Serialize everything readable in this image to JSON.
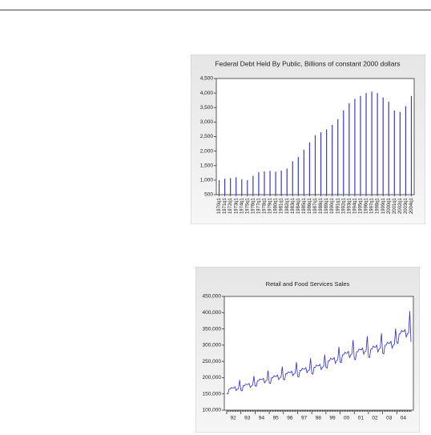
{
  "chart_data": [
    {
      "type": "bar",
      "title": "Federal Debt Held By Public, Billions of constant 2000 dollars",
      "categories": [
        "1970q1",
        "1971q1",
        "1972q1",
        "1973q1",
        "1974q1",
        "1975q1",
        "1976q1",
        "1977q1",
        "1978q1",
        "1979q1",
        "1980q1",
        "1981q1",
        "1982q1",
        "1983q1",
        "1984q1",
        "1985q1",
        "1986q1",
        "1987q1",
        "1988q1",
        "1989q1",
        "1990q1",
        "1991q1",
        "1992q1",
        "1993q1",
        "1994q1",
        "1995q1",
        "1996q1",
        "1997q1",
        "1998q1",
        "1999q1",
        "2000q1",
        "2001q1",
        "2002q1",
        "2003q1",
        "2004q1"
      ],
      "values": [
        1000,
        1050,
        1070,
        1100,
        1030,
        1000,
        1150,
        1270,
        1300,
        1320,
        1290,
        1330,
        1400,
        1650,
        1800,
        2050,
        2300,
        2550,
        2650,
        2750,
        2900,
        3100,
        3400,
        3650,
        3800,
        3900,
        4000,
        4050,
        4000,
        3850,
        3700,
        3400,
        3350,
        3550,
        3900
      ],
      "color": "#3a3ad0",
      "ylim": [
        500,
        4500
      ],
      "yticks": [
        {
          "value": 500,
          "label": "500"
        },
        {
          "value": 1000,
          "label": "1,000"
        },
        {
          "value": 1500,
          "label": "1,500"
        },
        {
          "value": 2000,
          "label": "2,000"
        },
        {
          "value": 2500,
          "label": "2,500"
        },
        {
          "value": 3000,
          "label": "3,000"
        },
        {
          "value": 3500,
          "label": "3,500"
        },
        {
          "value": 4000,
          "label": "4,000"
        },
        {
          "value": 4500,
          "label": "4,500"
        }
      ]
    },
    {
      "type": "line",
      "title": "Retail and Food Services Sales",
      "categories": [
        "92",
        null,
        null,
        null,
        null,
        null,
        null,
        null,
        null,
        null,
        null,
        null,
        "93",
        null,
        null,
        null,
        null,
        null,
        null,
        null,
        null,
        null,
        null,
        null,
        "94",
        null,
        null,
        null,
        null,
        null,
        null,
        null,
        null,
        null,
        null,
        null,
        "95",
        null,
        null,
        null,
        null,
        null,
        null,
        null,
        null,
        null,
        null,
        null,
        "96",
        null,
        null,
        null,
        null,
        null,
        null,
        null,
        null,
        null,
        null,
        null,
        "97",
        null,
        null,
        null,
        null,
        null,
        null,
        null,
        null,
        null,
        null,
        null,
        "98",
        null,
        null,
        null,
        null,
        null,
        null,
        null,
        null,
        null,
        null,
        null,
        "99",
        null,
        null,
        null,
        null,
        null,
        null,
        null,
        null,
        null,
        null,
        null,
        "00",
        null,
        null,
        null,
        null,
        null,
        null,
        null,
        null,
        null,
        null,
        null,
        "01",
        null,
        null,
        null,
        null,
        null,
        null,
        null,
        null,
        null,
        null,
        null,
        "02",
        null,
        null,
        null,
        null,
        null,
        null,
        null,
        null,
        null,
        null,
        null,
        "03",
        null,
        null,
        null,
        null,
        null,
        null,
        null,
        null,
        null,
        null,
        null,
        "04",
        null,
        null,
        null,
        null,
        null,
        null,
        null,
        null,
        null,
        null,
        null,
        null
      ],
      "values": [
        152000,
        150000,
        165000,
        165000,
        170000,
        168000,
        168000,
        172000,
        160000,
        165000,
        167000,
        193000,
        161000,
        159000,
        175000,
        175000,
        180000,
        179000,
        179000,
        182000,
        170000,
        175000,
        177000,
        205000,
        175000,
        173000,
        190000,
        190000,
        196000,
        194000,
        194000,
        198000,
        184000,
        190000,
        192000,
        222000,
        184000,
        182000,
        200000,
        200000,
        206000,
        204000,
        204000,
        208000,
        194000,
        200000,
        202000,
        234000,
        195000,
        193000,
        212000,
        212000,
        218000,
        216000,
        216000,
        220000,
        206000,
        212000,
        214000,
        248000,
        204000,
        202000,
        222000,
        222000,
        229000,
        226000,
        226000,
        231000,
        215000,
        222000,
        224000,
        260000,
        213000,
        211000,
        232000,
        232000,
        239000,
        237000,
        237000,
        241000,
        225000,
        232000,
        234000,
        271000,
        232000,
        229000,
        252000,
        252000,
        260000,
        257000,
        257000,
        262000,
        244000,
        252000,
        255000,
        295000,
        248000,
        246000,
        270000,
        270000,
        278000,
        275000,
        275000,
        281000,
        262000,
        270000,
        273000,
        316000,
        258000,
        255000,
        280000,
        280000,
        288000,
        286000,
        286000,
        291000,
        272000,
        280000,
        283000,
        328000,
        265000,
        262000,
        288000,
        288000,
        297000,
        294000,
        294000,
        300000,
        279000,
        288000,
        291000,
        337000,
        276000,
        273000,
        300000,
        300000,
        309000,
        306000,
        306000,
        312000,
        291000,
        300000,
        303000,
        351000,
        308000,
        305000,
        335000,
        335000,
        345000,
        342000,
        342000,
        348000,
        325000,
        335000,
        338000,
        405000,
        310000
      ],
      "color": "#2a2ad8",
      "ylim": [
        100000,
        450000
      ],
      "yticks": [
        {
          "value": 100000,
          "label": "100,000"
        },
        {
          "value": 150000,
          "label": "150,000"
        },
        {
          "value": 200000,
          "label": "200,000"
        },
        {
          "value": 250000,
          "label": "250,000"
        },
        {
          "value": 300000,
          "label": "300,000"
        },
        {
          "value": 350000,
          "label": "350,000"
        },
        {
          "value": 400000,
          "label": "400,000"
        },
        {
          "value": 450000,
          "label": "450,000"
        }
      ]
    }
  ]
}
